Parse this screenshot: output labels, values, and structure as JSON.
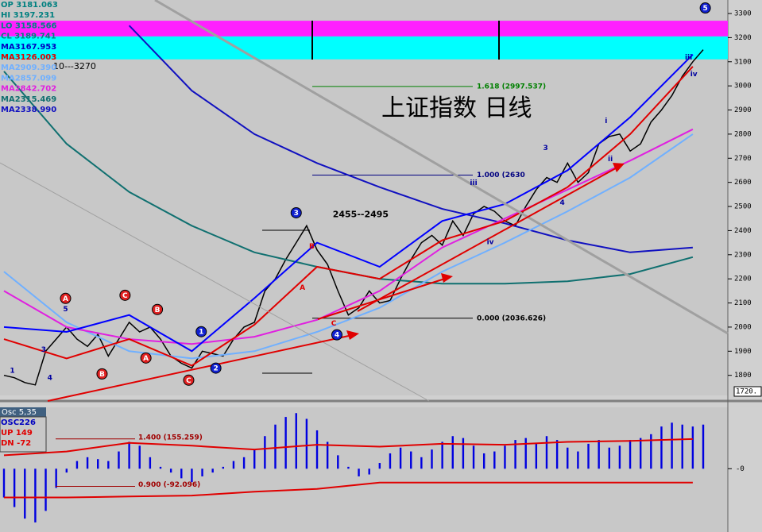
{
  "chart_data": [
    {
      "type": "line",
      "title": "上证指数 日线",
      "range_note": "10---3270",
      "info": [
        {
          "text": "OP 3181.063",
          "color": "#008080"
        },
        {
          "text": "HI 3197.231",
          "color": "#008080"
        },
        {
          "text": "LO 3158.566",
          "color": "#008080"
        },
        {
          "text": "CL 3189.741",
          "color": "#008080"
        },
        {
          "text": "MA3167.953",
          "color": "#0000c0"
        },
        {
          "text": "MA3126.003",
          "color": "#e00000"
        },
        {
          "text": "MA2909.390",
          "color": "#70b0ff"
        },
        {
          "text": "MA2857.099",
          "color": "#70b0ff"
        },
        {
          "text": "MA2842.702",
          "color": "#e020e0"
        },
        {
          "text": "MA2315.469",
          "color": "#107070"
        },
        {
          "text": "MA2338.990",
          "color": "#1010c0"
        }
      ],
      "ylim": [
        1720,
        3356
      ],
      "yticks": [
        1800,
        1900,
        2000,
        2100,
        2200,
        2300,
        2400,
        2500,
        2600,
        2700,
        2800,
        2900,
        3000,
        3100,
        3200,
        3300
      ],
      "marker": {
        "value": 1720,
        "label": "1720."
      },
      "bands": [
        {
          "from": 3205,
          "to": 3270,
          "color": "#ff20ff"
        },
        {
          "from": 3110,
          "to": 3205,
          "color": "#00ffff"
        }
      ],
      "fib": [
        {
          "value": 2997.537,
          "label": "1.618 (2997.537)",
          "color": "#008000"
        },
        {
          "value": 2630,
          "label": "1.000 (2630",
          "color": "#000080"
        },
        {
          "value": 2036.626,
          "label": "0.000 (2036.626)",
          "color": "#000000"
        }
      ],
      "series": [
        {
          "color": "#000000",
          "values": [
            1800,
            1790,
            1770,
            1760,
            1900,
            1950,
            2000,
            1950,
            1920,
            1970,
            1880,
            1950,
            2020,
            1980,
            2000,
            1950,
            1880,
            1850,
            1830,
            1900,
            1890,
            1880,
            1950,
            2000,
            2020,
            2150,
            2200,
            2280,
            2350,
            2420,
            2320,
            2260,
            2150,
            2050,
            2080,
            2150,
            2100,
            2110,
            2200,
            2280,
            2350,
            2380,
            2340,
            2440,
            2380,
            2470,
            2500,
            2480,
            2440,
            2420,
            2500,
            2570,
            2620,
            2600,
            2680,
            2600,
            2640,
            2760,
            2790,
            2800,
            2730,
            2760,
            2850,
            2900,
            2960,
            3040,
            3100,
            3150
          ]
        },
        {
          "color": "#1010c0",
          "x": [
            0,
            6,
            12,
            18,
            24,
            30,
            36,
            42,
            48,
            54,
            60,
            66
          ],
          "values": [
            null,
            null,
            3250,
            2980,
            2800,
            2680,
            2580,
            2490,
            2430,
            2360,
            2310,
            2330
          ]
        },
        {
          "color": "#107070",
          "x": [
            0,
            6,
            12,
            18,
            24,
            30,
            36,
            42,
            48,
            54,
            60,
            66
          ],
          "values": [
            3060,
            2760,
            2560,
            2420,
            2310,
            2250,
            2200,
            2180,
            2180,
            2190,
            2220,
            2290
          ]
        },
        {
          "color": "#70b0ff",
          "x": [
            0,
            6,
            12,
            18,
            24,
            30,
            36,
            42,
            48,
            54,
            60,
            66
          ],
          "values": [
            2230,
            2020,
            1900,
            1870,
            1900,
            1980,
            2080,
            2230,
            2350,
            2480,
            2620,
            2800
          ]
        },
        {
          "color": "#e020e0",
          "x": [
            0,
            6,
            12,
            18,
            24,
            30,
            36,
            42,
            48,
            54,
            60,
            66
          ],
          "values": [
            2150,
            2000,
            1950,
            1930,
            1960,
            2030,
            2150,
            2330,
            2450,
            2570,
            2690,
            2820
          ]
        },
        {
          "color": "#e00000",
          "x": [
            0,
            6,
            12,
            18,
            24,
            30,
            36,
            42,
            48,
            54,
            60,
            66
          ],
          "values": [
            1950,
            1870,
            1950,
            1840,
            2010,
            2250,
            2200,
            2360,
            2440,
            2580,
            2800,
            3080
          ]
        },
        {
          "color": "#0000ff",
          "x": [
            0,
            6,
            12,
            18,
            24,
            30,
            36,
            42,
            48,
            54,
            60,
            66
          ],
          "values": [
            2000,
            1980,
            2050,
            1900,
            2120,
            2350,
            2250,
            2440,
            2510,
            2650,
            2870,
            3130
          ]
        }
      ],
      "annotations": [
        {
          "text": "5",
          "x": 67.2,
          "y": 3323,
          "style": "cb"
        },
        {
          "text": "3",
          "x": 28,
          "y": 2474,
          "style": "cb"
        },
        {
          "text": "1",
          "x": 18.9,
          "y": 1981,
          "style": "cb"
        },
        {
          "text": "2",
          "x": 20.3,
          "y": 1830,
          "style": "cb"
        },
        {
          "text": "4",
          "x": 31.9,
          "y": 1968,
          "style": "cb"
        },
        {
          "text": "A",
          "x": 5.9,
          "y": 2119,
          "style": "cr"
        },
        {
          "text": "C",
          "x": 11.6,
          "y": 2132,
          "style": "cr"
        },
        {
          "text": "B",
          "x": 14.7,
          "y": 2073,
          "style": "cr"
        },
        {
          "text": "B",
          "x": 9.4,
          "y": 1806,
          "style": "cr"
        },
        {
          "text": "A",
          "x": 13.6,
          "y": 1872,
          "style": "cr"
        },
        {
          "text": "C",
          "x": 17.7,
          "y": 1780,
          "style": "cr"
        },
        {
          "text": "B",
          "x": 29.5,
          "y": 2336,
          "style": "r"
        },
        {
          "text": "A",
          "x": 28.6,
          "y": 2165,
          "style": "r"
        },
        {
          "text": "C",
          "x": 31.6,
          "y": 2017,
          "style": "r"
        },
        {
          "text": "2455--2495",
          "x": 31.5,
          "y": 2468,
          "style": "k"
        },
        {
          "text": "3",
          "x": 51.9,
          "y": 2744,
          "style": "b"
        },
        {
          "text": "4",
          "x": 53.5,
          "y": 2517,
          "style": "b"
        },
        {
          "text": "1",
          "x": 0.8,
          "y": 1820,
          "style": "b"
        },
        {
          "text": "3",
          "x": 3.8,
          "y": 1908,
          "style": "b"
        },
        {
          "text": "4",
          "x": 4.4,
          "y": 1790,
          "style": "b"
        },
        {
          "text": "5",
          "x": 5.9,
          "y": 2076,
          "style": "b"
        },
        {
          "text": "iii",
          "x": 45,
          "y": 2599,
          "style": "b"
        },
        {
          "text": "iv",
          "x": 46.6,
          "y": 2353,
          "style": "b"
        },
        {
          "text": "i",
          "x": 57.7,
          "y": 2856,
          "style": "b"
        },
        {
          "text": "ii",
          "x": 58.1,
          "y": 2698,
          "style": "b"
        },
        {
          "text": "iii",
          "x": 65.6,
          "y": 3119,
          "style": "b"
        },
        {
          "text": "iv",
          "x": 66.1,
          "y": 3050,
          "style": "b"
        }
      ]
    },
    {
      "type": "bar",
      "title": "Osc 5,35",
      "info": [
        {
          "text": "OSC226",
          "color": "#0000c0"
        },
        {
          "text": "UP  149",
          "color": "#e00000"
        },
        {
          "text": "DN  -72",
          "color": "#e00000"
        }
      ],
      "ylim": [
        -330,
        320
      ],
      "yticks": [
        {
          "value": 0,
          "label": "-0"
        }
      ],
      "color": "#0000e0",
      "levels": [
        {
          "value": 155.259,
          "label": "1.400 (155.259)"
        },
        {
          "value": -92.096,
          "label": "0.900 (-92.096)"
        }
      ],
      "values": [
        -150,
        -200,
        -260,
        -280,
        -220,
        -100,
        -20,
        40,
        60,
        50,
        40,
        90,
        140,
        120,
        60,
        10,
        -20,
        -50,
        -70,
        -40,
        -20,
        10,
        40,
        60,
        100,
        170,
        230,
        270,
        290,
        260,
        200,
        140,
        70,
        10,
        -40,
        -30,
        30,
        80,
        110,
        90,
        60,
        100,
        140,
        170,
        160,
        120,
        80,
        90,
        120,
        150,
        160,
        130,
        170,
        150,
        110,
        90,
        130,
        150,
        110,
        120,
        150,
        160,
        180,
        220,
        240,
        230,
        220,
        230
      ],
      "series": [
        {
          "color": "#e00000",
          "x": [
            0,
            6,
            12,
            18,
            24,
            30,
            36,
            42,
            48,
            54,
            60,
            66
          ],
          "values": [
            70,
            90,
            135,
            120,
            100,
            125,
            115,
            130,
            125,
            140,
            145,
            155
          ]
        },
        {
          "color": "#e00000",
          "x": [
            0,
            6,
            12,
            18,
            24,
            30,
            36,
            42,
            48,
            54,
            60,
            66
          ],
          "values": [
            -150,
            -150,
            -145,
            -140,
            -120,
            -105,
            -72,
            -72,
            -72,
            -72,
            -72,
            -72
          ]
        }
      ]
    }
  ]
}
